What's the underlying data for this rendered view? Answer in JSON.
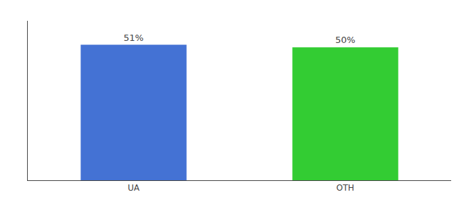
{
  "chart_data": {
    "type": "bar",
    "categories": [
      "UA",
      "OTH"
    ],
    "values": [
      51,
      50
    ],
    "value_labels": [
      "51%",
      "50%"
    ],
    "colors": [
      "#4472d4",
      "#33cc33"
    ],
    "ylim": [
      0,
      60
    ],
    "grid": false,
    "data_labels": true,
    "tick_labels": "x"
  }
}
